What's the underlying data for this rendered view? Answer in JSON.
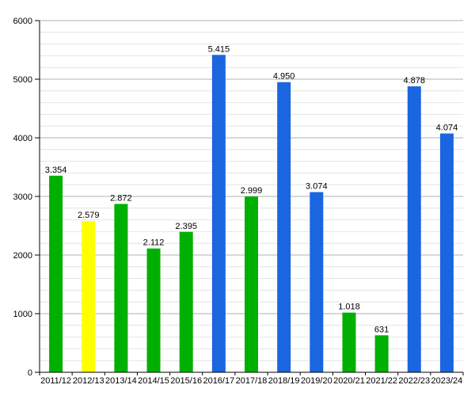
{
  "chart_data": {
    "type": "bar",
    "title": "",
    "xlabel": "",
    "ylabel": "",
    "categories": [
      "2011/12",
      "2012/13",
      "2013/14",
      "2014/15",
      "2015/16",
      "2016/17",
      "2017/18",
      "2018/19",
      "2019/20",
      "2020/21",
      "2021/22",
      "2022/23",
      "2023/24"
    ],
    "values": [
      3354,
      2579,
      2872,
      2112,
      2395,
      5415,
      2999,
      4950,
      3074,
      1018,
      631,
      4878,
      4074
    ],
    "value_labels": [
      "3.354",
      "2.579",
      "2.872",
      "2.112",
      "2.395",
      "5.415",
      "2.999",
      "4.950",
      "3.074",
      "1.018",
      "631",
      "4.878",
      "4.074"
    ],
    "bar_colors": [
      "#00b000",
      "#ffff00",
      "#00b000",
      "#00b000",
      "#00b000",
      "#1a66e0",
      "#00b000",
      "#1a66e0",
      "#1a66e0",
      "#00b000",
      "#00b000",
      "#1a66e0",
      "#1a66e0"
    ],
    "ylim": [
      0,
      6000
    ],
    "y_ticks": [
      0,
      1000,
      2000,
      3000,
      4000,
      5000,
      6000
    ],
    "minor_gridlines": true,
    "grid": true,
    "legend": "none"
  }
}
